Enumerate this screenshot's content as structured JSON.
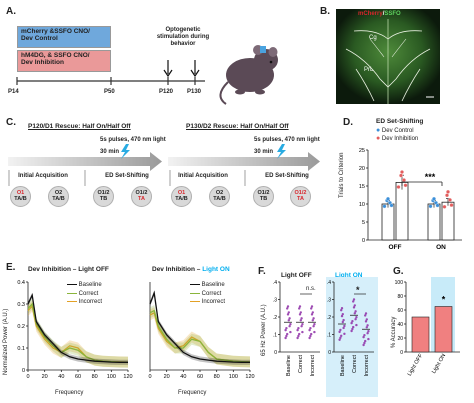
{
  "panelA": {
    "label": "A.",
    "box1": {
      "line1": "mCherry &SSFO CNO/",
      "line2": "Dev Control"
    },
    "box2": {
      "line1": "hM4DG, & SSFO CNO/",
      "line2": "Dev Inhibition"
    },
    "timepoints": [
      "P14",
      "P50",
      "P120",
      "P130"
    ],
    "note": {
      "line1": "Optogenetic",
      "line2": "stimulation during",
      "line3": "behavior"
    },
    "colors": {
      "box1": "#6fa8dc",
      "box2": "#ea9999"
    }
  },
  "panelB": {
    "label": "B.",
    "title_a": "mCherry",
    "title_sep": "/",
    "title_b": "SSFO",
    "region1": "Cg",
    "region2": "PrL"
  },
  "panelC": {
    "label": "C.",
    "heading1": "P120/D1 Rescue: Half On/Half Off",
    "heading2": "P130/D2 Rescue: Half On/Half Off",
    "stim1": "5s pulses, 470 nm light",
    "stim2": "5s pulses, 470 nm light",
    "dur1": "30 min",
    "dur2": "30 min",
    "stage_initial": "Initial Acquisition",
    "stage_ed": "ED Set-Shifting",
    "circles": [
      {
        "top": "O1",
        "bottom": "TA/B",
        "red": true
      },
      {
        "top": "O2",
        "bottom": "TA/B",
        "red": false
      },
      {
        "top": "O1/2",
        "bottom": "TB",
        "red": false
      },
      {
        "top": "O1/2",
        "bottom": "TA",
        "red": true
      },
      {
        "top": "O1",
        "bottom": "TA/B",
        "red": true
      },
      {
        "top": "O2",
        "bottom": "TA/B",
        "red": false
      },
      {
        "top": "O1/2",
        "bottom": "TB",
        "red": false
      },
      {
        "top": "O1/2",
        "bottom": "TA",
        "red": true
      }
    ]
  },
  "panelD": {
    "label": "D.",
    "title": "ED Set-Shifting",
    "legend": [
      "Dev Control",
      "Dev Inhibition"
    ],
    "ylabel": "Trials to Criterion",
    "sig": "***",
    "colors": {
      "control": "#3b8fd9",
      "inhibition": "#e35d5d"
    }
  },
  "panelE": {
    "label": "E.",
    "title1": "Dev Inhibition – Light OFF",
    "title2_a": "Dev Inhibition – ",
    "title2_b": "Light ON",
    "ylabel": "Normalized Power (A.U.)",
    "xlabel1": "Frequency",
    "xlabel2": "Frequency",
    "legend": [
      "Baseline",
      "Correct",
      "Incorrect"
    ],
    "colors": {
      "baseline": "#111111",
      "correct": "#8ab53b",
      "incorrect": "#e3a126"
    }
  },
  "panelF": {
    "label": "F.",
    "title1": "Light OFF",
    "title2": "Light ON",
    "ylabel": "65 Hz Power (A.U.)",
    "ns": "n.s.",
    "sig": "*",
    "xcats": [
      "Baseline",
      "Correct",
      "Incorrect"
    ],
    "colors": {
      "points": "#8e2fa7",
      "bg_on": "#d6effa"
    }
  },
  "panelG": {
    "label": "G.",
    "ylabel": "% Accuracy",
    "sig": "*",
    "colors": {
      "bar": "#f08080",
      "bg_on": "#c8ebf9"
    }
  },
  "chart_data": [
    {
      "panel": "D",
      "type": "bar",
      "categories": [
        "OFF",
        "ON"
      ],
      "series": [
        {
          "name": "Dev Control",
          "values": [
            10,
            10
          ],
          "err": [
            1,
            1
          ]
        },
        {
          "name": "Dev Inhibition",
          "values": [
            16,
            10.5
          ],
          "err": [
            2,
            1
          ]
        }
      ],
      "ylabel": "Trials to Criterion",
      "yticks": [
        0,
        5,
        10,
        15,
        20,
        25
      ],
      "ylim": [
        0,
        25
      ]
    },
    {
      "panel": "E-left",
      "type": "line",
      "x": [
        0,
        5,
        10,
        20,
        30,
        40,
        50,
        60,
        70,
        80,
        90,
        100,
        110,
        120
      ],
      "series": [
        {
          "name": "Baseline",
          "values": [
            0.3,
            0.34,
            0.22,
            0.16,
            0.12,
            0.08,
            0.06,
            0.05,
            0.045,
            0.04,
            0.038,
            0.036,
            0.035,
            0.035
          ]
        },
        {
          "name": "Correct",
          "values": [
            0.28,
            0.3,
            0.21,
            0.15,
            0.11,
            0.08,
            0.1,
            0.09,
            0.06,
            0.045,
            0.04,
            0.038,
            0.036,
            0.036
          ]
        },
        {
          "name": "Incorrect",
          "values": [
            0.27,
            0.29,
            0.2,
            0.14,
            0.1,
            0.08,
            0.11,
            0.1,
            0.06,
            0.045,
            0.04,
            0.038,
            0.037,
            0.036
          ]
        }
      ],
      "xlabel": "Frequency",
      "xticks": [
        0,
        20,
        40,
        60,
        80,
        100,
        120
      ],
      "ylabel": "Normalized Power (A.U.)",
      "yticks": [
        0,
        0.1,
        0.2,
        0.3,
        0.4
      ],
      "ylim": [
        0,
        0.4
      ]
    },
    {
      "panel": "E-right",
      "type": "line",
      "x": [
        0,
        5,
        10,
        20,
        30,
        40,
        50,
        60,
        70,
        80,
        90,
        100,
        110,
        120
      ],
      "series": [
        {
          "name": "Baseline",
          "values": [
            0.3,
            0.35,
            0.22,
            0.16,
            0.12,
            0.08,
            0.06,
            0.05,
            0.045,
            0.04,
            0.038,
            0.036,
            0.035,
            0.035
          ]
        },
        {
          "name": "Correct",
          "values": [
            0.26,
            0.27,
            0.2,
            0.14,
            0.1,
            0.1,
            0.14,
            0.13,
            0.08,
            0.05,
            0.045,
            0.04,
            0.038,
            0.037
          ]
        },
        {
          "name": "Incorrect",
          "values": [
            0.25,
            0.26,
            0.19,
            0.13,
            0.1,
            0.11,
            0.15,
            0.13,
            0.08,
            0.05,
            0.045,
            0.04,
            0.038,
            0.037
          ]
        }
      ],
      "xlabel": "Frequency",
      "xticks": [
        0,
        20,
        40,
        60,
        80,
        100,
        120
      ],
      "ylim": [
        0,
        0.4
      ]
    },
    {
      "panel": "F",
      "type": "scatter",
      "groups": [
        {
          "name": "Light OFF",
          "categories": [
            "Baseline",
            "Correct",
            "Incorrect"
          ],
          "means": [
            0.17,
            0.17,
            0.17
          ]
        },
        {
          "name": "Light ON",
          "categories": [
            "Baseline",
            "Correct",
            "Incorrect"
          ],
          "means": [
            0.16,
            0.21,
            0.13
          ]
        }
      ],
      "ylabel": "65 Hz Power (A.U.)",
      "yticks": [
        0,
        0.1,
        0.2,
        0.3,
        0.4
      ],
      "ylim": [
        0,
        0.4
      ]
    },
    {
      "panel": "G",
      "type": "bar",
      "categories": [
        "Light OFF",
        "Light ON"
      ],
      "values": [
        50,
        65
      ],
      "ylabel": "% Accuracy",
      "yticks": [
        0,
        20,
        40,
        60,
        80,
        100
      ],
      "ylim": [
        0,
        100
      ]
    }
  ]
}
